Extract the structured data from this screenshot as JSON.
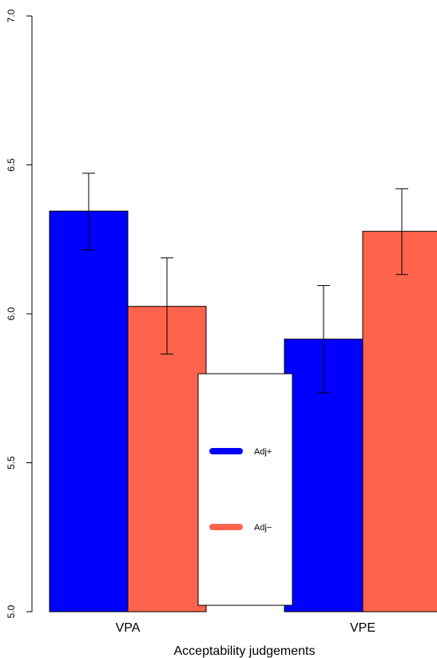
{
  "chart_data": {
    "type": "bar",
    "title": "",
    "xlabel": "Acceptability judgements",
    "ylabel": "",
    "ylim": [
      5.0,
      7.0
    ],
    "yticks": [
      "5.0",
      "5.5",
      "6.0",
      "6.5",
      "7.0"
    ],
    "categories": [
      "VPA",
      "VPE"
    ],
    "series": [
      {
        "name": "Adj+",
        "color": "#0000ff",
        "values": [
          6.345,
          5.915
        ],
        "error_low": [
          6.215,
          5.735
        ],
        "error_high": [
          6.472,
          6.095
        ]
      },
      {
        "name": "Adj−",
        "color": "#ff634b",
        "values": [
          6.025,
          6.277
        ],
        "error_low": [
          5.865,
          6.132
        ],
        "error_high": [
          6.188,
          6.42
        ]
      }
    ],
    "legend": {
      "placement": "bottom-center",
      "entries": [
        "Adj+",
        "Adj−"
      ]
    },
    "grid": false
  }
}
